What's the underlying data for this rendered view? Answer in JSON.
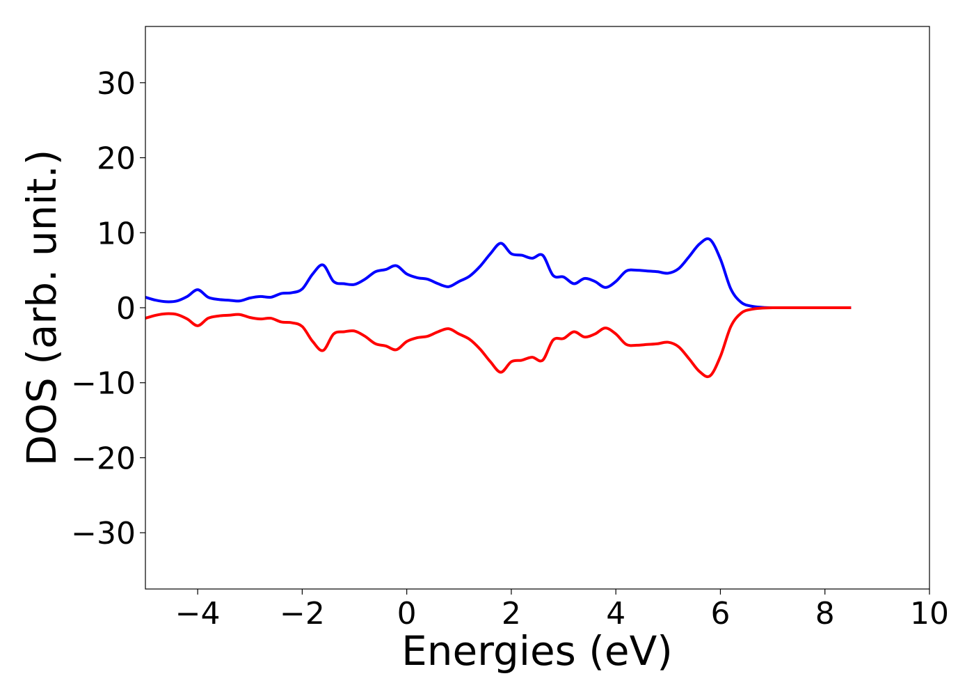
{
  "chart_data": {
    "type": "line",
    "title": "",
    "xlabel": "Energies (eV)",
    "ylabel": "DOS (arb. unit.)",
    "xlim": [
      -5,
      10
    ],
    "ylim": [
      -37.5,
      37.5
    ],
    "xticks": [
      -4,
      -2,
      0,
      2,
      4,
      6,
      8,
      10
    ],
    "yticks": [
      -30,
      -20,
      -10,
      0,
      10,
      20,
      30
    ],
    "xtick_labels": [
      "−4",
      "−2",
      "0",
      "2",
      "4",
      "6",
      "8",
      "10"
    ],
    "ytick_labels": [
      "−30",
      "−20",
      "−10",
      "0",
      "10",
      "20",
      "30"
    ],
    "grid": false,
    "legend": "none",
    "series": [
      {
        "color": "#0000ff",
        "x": [
          -5.0,
          -4.8,
          -4.6,
          -4.4,
          -4.2,
          -4.0,
          -3.8,
          -3.6,
          -3.4,
          -3.2,
          -3.0,
          -2.8,
          -2.6,
          -2.4,
          -2.2,
          -2.0,
          -1.8,
          -1.6,
          -1.4,
          -1.2,
          -1.0,
          -0.8,
          -0.6,
          -0.4,
          -0.2,
          0.0,
          0.2,
          0.4,
          0.6,
          0.8,
          1.0,
          1.2,
          1.4,
          1.6,
          1.8,
          2.0,
          2.2,
          2.4,
          2.6,
          2.8,
          3.0,
          3.2,
          3.4,
          3.6,
          3.8,
          4.0,
          4.2,
          4.4,
          4.6,
          4.8,
          5.0,
          5.2,
          5.4,
          5.6,
          5.8,
          6.0,
          6.2,
          6.4,
          6.6,
          6.8,
          7.0,
          7.5,
          8.0,
          8.5
        ],
        "y": [
          1.4,
          1.0,
          0.8,
          0.9,
          1.5,
          2.4,
          1.4,
          1.1,
          1.0,
          0.9,
          1.3,
          1.5,
          1.4,
          1.9,
          2.0,
          2.5,
          4.5,
          5.7,
          3.5,
          3.2,
          3.1,
          3.8,
          4.8,
          5.1,
          5.6,
          4.5,
          4.0,
          3.8,
          3.2,
          2.8,
          3.5,
          4.2,
          5.5,
          7.2,
          8.6,
          7.2,
          7.0,
          6.6,
          7.0,
          4.3,
          4.1,
          3.2,
          3.9,
          3.5,
          2.7,
          3.5,
          4.9,
          5.0,
          4.9,
          4.8,
          4.6,
          5.2,
          6.8,
          8.5,
          9.1,
          6.5,
          2.5,
          0.7,
          0.2,
          0.05,
          0.0,
          0.0,
          0.0,
          0.0
        ]
      },
      {
        "color": "#ff0000",
        "x": [
          -5.0,
          -4.8,
          -4.6,
          -4.4,
          -4.2,
          -4.0,
          -3.8,
          -3.6,
          -3.4,
          -3.2,
          -3.0,
          -2.8,
          -2.6,
          -2.4,
          -2.2,
          -2.0,
          -1.8,
          -1.6,
          -1.4,
          -1.2,
          -1.0,
          -0.8,
          -0.6,
          -0.4,
          -0.2,
          0.0,
          0.2,
          0.4,
          0.6,
          0.8,
          1.0,
          1.2,
          1.4,
          1.6,
          1.8,
          2.0,
          2.2,
          2.4,
          2.6,
          2.8,
          3.0,
          3.2,
          3.4,
          3.6,
          3.8,
          4.0,
          4.2,
          4.4,
          4.6,
          4.8,
          5.0,
          5.2,
          5.4,
          5.6,
          5.8,
          6.0,
          6.2,
          6.4,
          6.6,
          6.8,
          7.0,
          7.5,
          8.0,
          8.5
        ],
        "y": [
          -1.4,
          -1.0,
          -0.8,
          -0.9,
          -1.5,
          -2.4,
          -1.4,
          -1.1,
          -1.0,
          -0.9,
          -1.3,
          -1.5,
          -1.4,
          -1.9,
          -2.0,
          -2.5,
          -4.5,
          -5.7,
          -3.5,
          -3.2,
          -3.1,
          -3.8,
          -4.8,
          -5.1,
          -5.6,
          -4.5,
          -4.0,
          -3.8,
          -3.2,
          -2.8,
          -3.5,
          -4.2,
          -5.5,
          -7.2,
          -8.6,
          -7.2,
          -7.0,
          -6.6,
          -7.0,
          -4.3,
          -4.1,
          -3.2,
          -3.9,
          -3.5,
          -2.7,
          -3.5,
          -4.9,
          -5.0,
          -4.9,
          -4.8,
          -4.6,
          -5.2,
          -6.8,
          -8.5,
          -9.1,
          -6.5,
          -2.5,
          -0.7,
          -0.2,
          -0.05,
          0.0,
          0.0,
          0.0,
          0.0
        ]
      }
    ]
  }
}
